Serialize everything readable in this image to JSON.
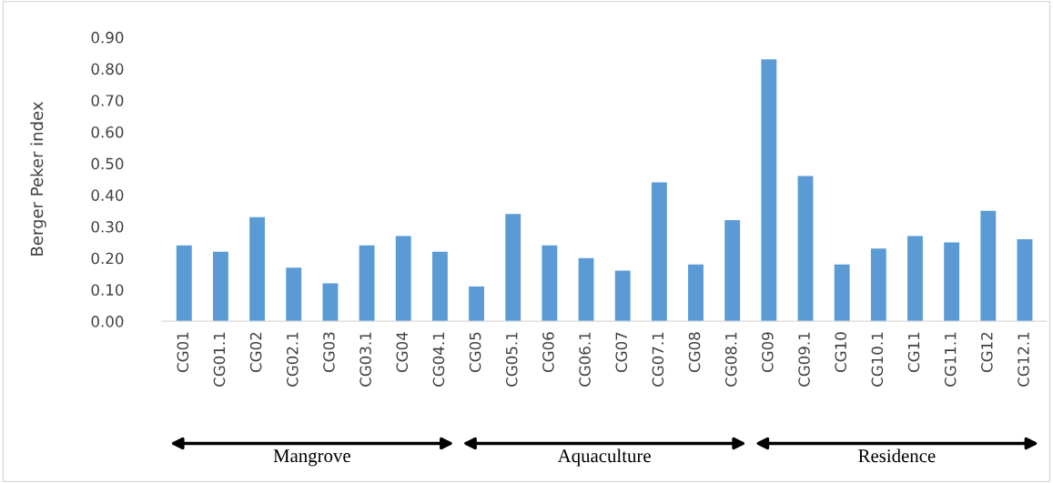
{
  "chart_data": {
    "type": "bar",
    "ylabel": "Berger Peker index",
    "categories": [
      "CG01",
      "CG01.1",
      "CG02",
      "CG02.1",
      "CG03",
      "CG03.1",
      "CG04",
      "CG04.1",
      "CG05",
      "CG05.1",
      "CG06",
      "CG06.1",
      "CG07",
      "CG07.1",
      "CG08",
      "CG08.1",
      "CG09",
      "CG09.1",
      "CG10",
      "CG10.1",
      "CG11",
      "CG11.1",
      "CG12",
      "CG12.1"
    ],
    "values": [
      0.24,
      0.22,
      0.33,
      0.17,
      0.12,
      0.24,
      0.27,
      0.22,
      0.11,
      0.34,
      0.24,
      0.2,
      0.16,
      0.44,
      0.18,
      0.32,
      0.83,
      0.46,
      0.18,
      0.23,
      0.27,
      0.25,
      0.35,
      0.26
    ],
    "color": "#5b9bd5",
    "ylim": [
      0,
      0.9
    ],
    "yticks": [
      {
        "value": 0,
        "label": "0.00"
      },
      {
        "value": 0.1,
        "label": "0.10"
      },
      {
        "value": 0.2,
        "label": "0.20"
      },
      {
        "value": 0.3,
        "label": "0.30"
      },
      {
        "value": 0.4,
        "label": "0.40"
      },
      {
        "value": 0.5,
        "label": "0.50"
      },
      {
        "value": 0.6,
        "label": "0.60"
      },
      {
        "value": 0.7,
        "label": "0.70"
      },
      {
        "value": 0.8,
        "label": "0.80"
      },
      {
        "value": 0.9,
        "label": "0.90"
      }
    ],
    "grid": false,
    "annotations": [
      "Mangrove",
      "Aquaculture",
      "Residence"
    ]
  }
}
